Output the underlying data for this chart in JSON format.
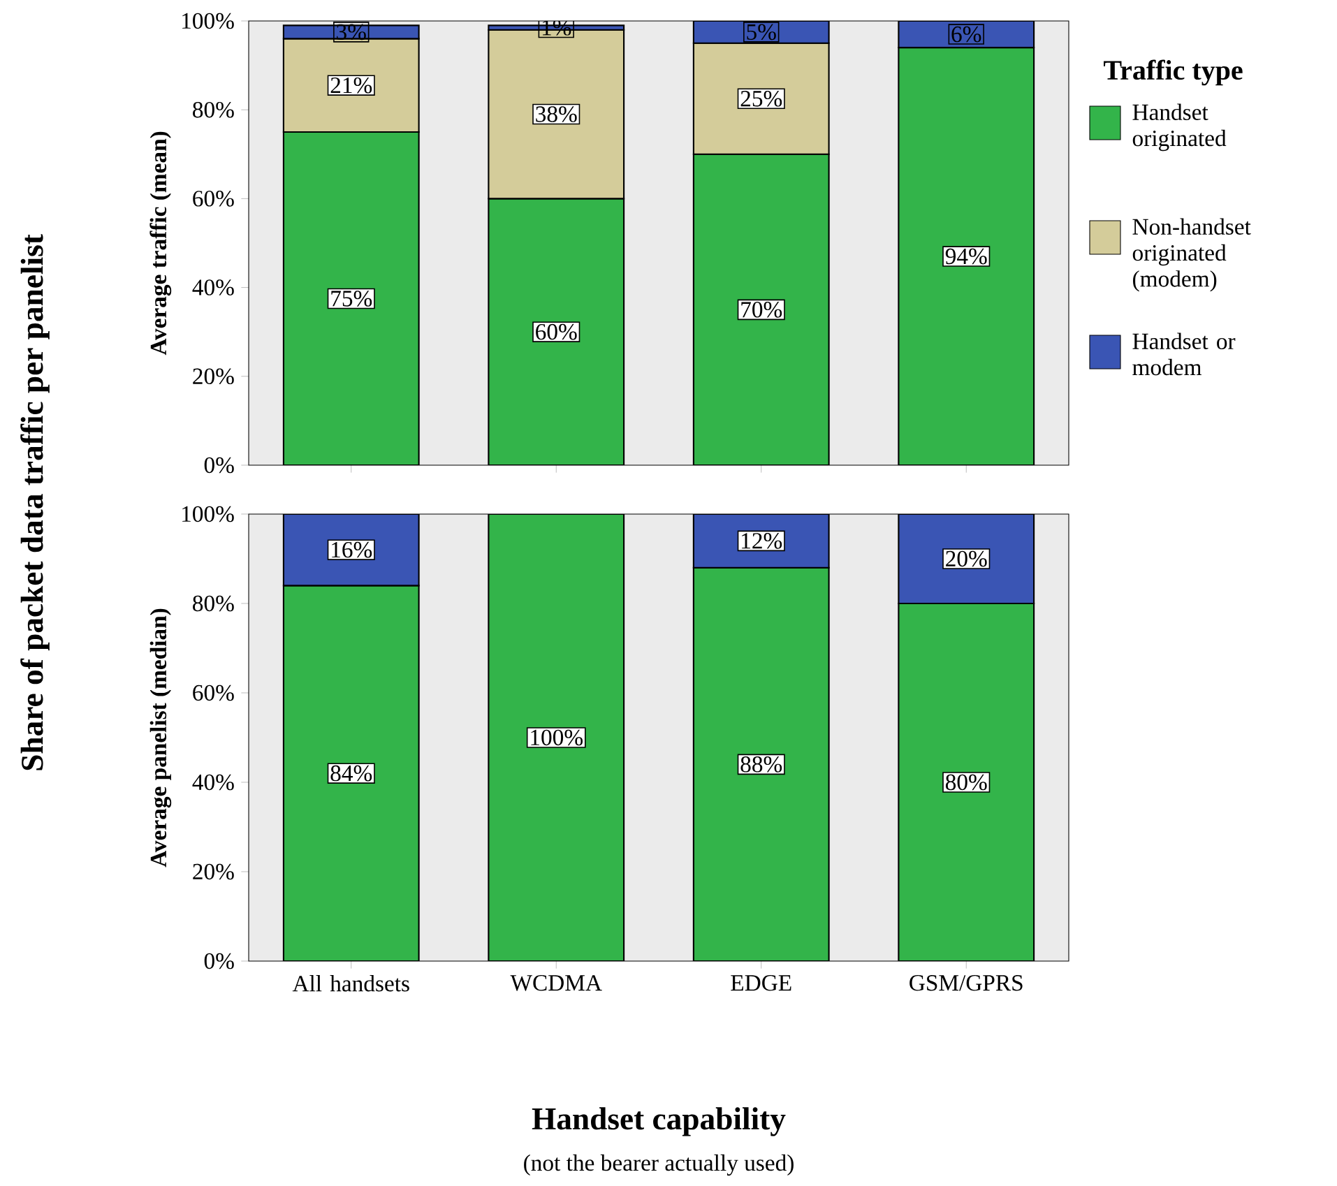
{
  "chart_data": [
    {
      "type": "bar",
      "stacked": true,
      "ylabel": "Average traffic (mean)",
      "legend": "right",
      "legend_title": "Traffic type",
      "tick_labels": "y",
      "annotations": [
        "Share of packet data traffic per panelist"
      ],
      "categories": [
        null,
        null,
        null,
        null
      ],
      "ylim": [
        0,
        100
      ],
      "yticks": [
        {
          "value": 0,
          "label": "0%"
        },
        {
          "value": 20,
          "label": "20%"
        },
        {
          "value": 40,
          "label": "40%"
        },
        {
          "value": 60,
          "label": "60%"
        },
        {
          "value": 80,
          "label": "80%"
        },
        {
          "value": 100,
          "label": "100%"
        }
      ],
      "series": [
        {
          "name": "Handset originated",
          "color": "#33b44a",
          "values": [
            75,
            60,
            70,
            94
          ],
          "value_labels": [
            "75%",
            "60%",
            "70%",
            "94%"
          ]
        },
        {
          "name": "Non-handset originated (modem)",
          "color": "#d4cc9a",
          "values": [
            21,
            38,
            25,
            null
          ],
          "value_labels": [
            "21%",
            "38%",
            "25%",
            null
          ]
        },
        {
          "name": "Handset or modem",
          "color": "#3a55b4",
          "values": [
            3,
            1,
            5,
            6
          ],
          "value_labels": [
            "3%",
            "1%",
            "5%",
            "6%"
          ]
        }
      ]
    },
    {
      "type": "bar",
      "stacked": true,
      "ylabel": "Average panelist (median)",
      "xlabel": "Handset capability",
      "annotations": [
        "(not the bearer actually used)"
      ],
      "categories": [
        "All handsets",
        "WCDMA",
        "EDGE",
        "GSM/GPRS"
      ],
      "ylim": [
        0,
        100
      ],
      "yticks": [
        {
          "value": 0,
          "label": "0%"
        },
        {
          "value": 20,
          "label": "20%"
        },
        {
          "value": 40,
          "label": "40%"
        },
        {
          "value": 60,
          "label": "60%"
        },
        {
          "value": 80,
          "label": "80%"
        },
        {
          "value": 100,
          "label": "100%"
        }
      ],
      "series": [
        {
          "color": "#33b44a",
          "values": [
            84,
            100,
            88,
            80
          ],
          "value_labels": [
            "84%",
            "100%",
            "88%",
            "80%"
          ]
        },
        {
          "color": "#3a55b4",
          "values": [
            16,
            null,
            12,
            20
          ],
          "value_labels": [
            "16%",
            null,
            "12%",
            "20%"
          ]
        }
      ]
    }
  ]
}
